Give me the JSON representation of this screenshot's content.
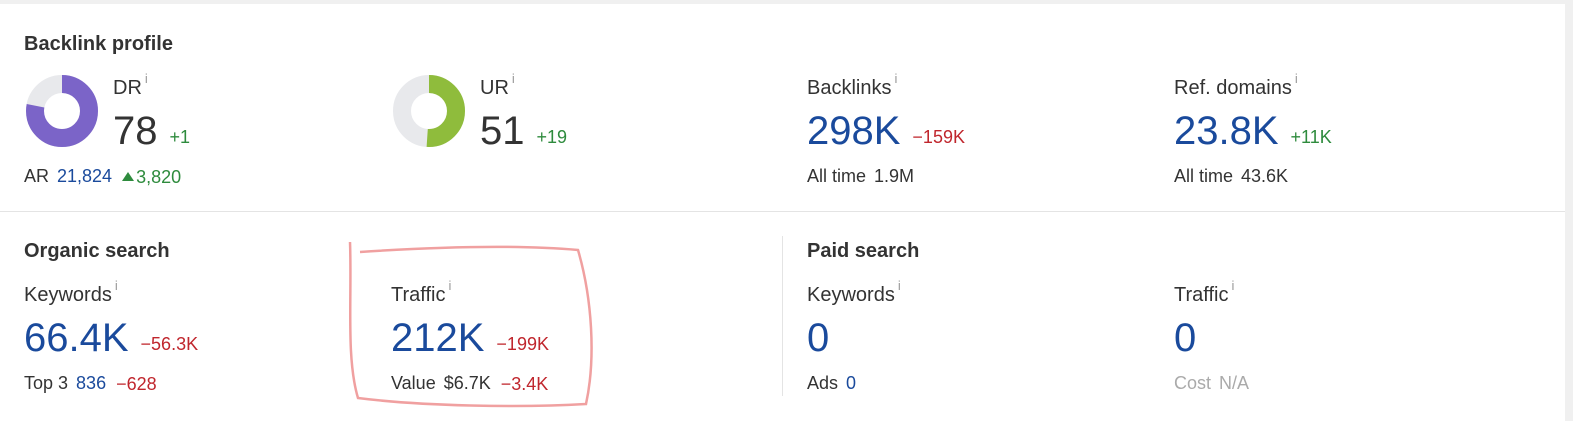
{
  "sections": [
    {
      "title": "Backlink profile",
      "metrics": [
        {
          "label": "DR",
          "info": "i",
          "value": "78",
          "change": "+1",
          "donut_color": "#7b64c8",
          "sub_label": "AR",
          "sub_value": "21,824",
          "sub_change": "3,820"
        },
        {
          "label": "UR",
          "info": "i",
          "value": "51",
          "change": "+19",
          "donut_color": "#8fbc3c"
        },
        {
          "label": "Backlinks",
          "info": "i",
          "value": "298K",
          "change": "−159K",
          "sub_label": "All time",
          "sub_value": "1.9M"
        },
        {
          "label": "Ref. domains",
          "info": "i",
          "value": "23.8K",
          "change": "+11K",
          "sub_label": "All time",
          "sub_value": "43.6K"
        }
      ]
    },
    {
      "title": "Organic search",
      "metrics": [
        {
          "label": "Keywords",
          "info": "i",
          "value": "66.4K",
          "change": "−56.3K",
          "sub_label": "Top 3",
          "sub_value": "836",
          "sub_change": "−628"
        },
        {
          "label": "Traffic",
          "info": "i",
          "value": "212K",
          "change": "−199K",
          "sub_label": "Value",
          "sub_value": "$6.7K",
          "sub_change": "−3.4K"
        }
      ]
    },
    {
      "title": "Paid search",
      "metrics": [
        {
          "label": "Keywords",
          "info": "i",
          "value": "0",
          "sub_label": "Ads",
          "sub_value": "0"
        },
        {
          "label": "Traffic",
          "info": "i",
          "value": "0",
          "sub_label": "Cost",
          "sub_value": "N/A",
          "muted": true
        }
      ]
    }
  ]
}
